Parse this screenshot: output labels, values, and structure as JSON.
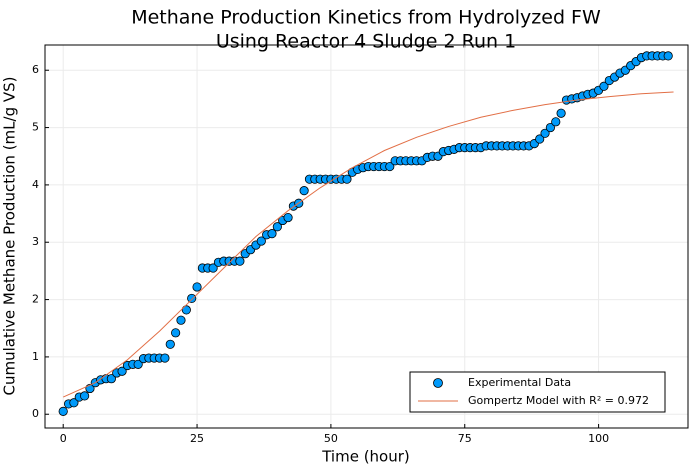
{
  "chart_data": {
    "type": "scatter",
    "title": [
      "Methane Production Kinetics from Hydrolyzed FW",
      "Using Reactor 4 Sludge 2 Run 1"
    ],
    "x_label": "Time (hour)",
    "y_label": "Cumulative Methane Production (mL/g VS)",
    "xlim": [
      -3.4,
      116.7
    ],
    "ylim": [
      -0.24,
      6.44
    ],
    "xticks": [
      0,
      25,
      50,
      75,
      100
    ],
    "yticks": [
      0,
      1,
      2,
      3,
      4,
      5,
      6
    ],
    "grid": true,
    "legend": "bottom-right",
    "series": [
      {
        "name": "Experimental Data",
        "type": "scatter",
        "color": "#009afa",
        "x": [
          0,
          1,
          2,
          3,
          4,
          5,
          6,
          7,
          8,
          9,
          10,
          11,
          12,
          13,
          14,
          15,
          16,
          17,
          18,
          19,
          20,
          21,
          22,
          23,
          24,
          25,
          26,
          27,
          28,
          29,
          30,
          31,
          32,
          33,
          34,
          35,
          36,
          37,
          38,
          39,
          40,
          41,
          42,
          43,
          44,
          45,
          46,
          47,
          48,
          49,
          50,
          51,
          52,
          53,
          54,
          55,
          56,
          57,
          58,
          59,
          60,
          61,
          62,
          63,
          64,
          65,
          66,
          67,
          68,
          69,
          70,
          71,
          72,
          73,
          74,
          75,
          76,
          77,
          78,
          79,
          80,
          81,
          82,
          83,
          84,
          85,
          86,
          87,
          88,
          89,
          90,
          91,
          92,
          93,
          94,
          95,
          96,
          97,
          98,
          99,
          100,
          101,
          102,
          103,
          104,
          105,
          106,
          107,
          108,
          109,
          110,
          111,
          112,
          113
        ],
        "values": [
          0.05,
          0.18,
          0.2,
          0.3,
          0.32,
          0.45,
          0.55,
          0.6,
          0.62,
          0.62,
          0.72,
          0.75,
          0.85,
          0.87,
          0.87,
          0.97,
          0.98,
          0.98,
          0.98,
          0.98,
          1.22,
          1.42,
          1.64,
          1.82,
          2.02,
          2.22,
          2.55,
          2.55,
          2.55,
          2.65,
          2.67,
          2.67,
          2.67,
          2.67,
          2.8,
          2.87,
          2.95,
          3.02,
          3.13,
          3.15,
          3.27,
          3.38,
          3.43,
          3.63,
          3.68,
          3.9,
          4.1,
          4.1,
          4.1,
          4.1,
          4.1,
          4.1,
          4.1,
          4.1,
          4.22,
          4.27,
          4.3,
          4.32,
          4.32,
          4.32,
          4.32,
          4.32,
          4.42,
          4.42,
          4.42,
          4.42,
          4.42,
          4.42,
          4.48,
          4.5,
          4.5,
          4.58,
          4.6,
          4.62,
          4.65,
          4.65,
          4.65,
          4.65,
          4.65,
          4.68,
          4.68,
          4.68,
          4.68,
          4.68,
          4.68,
          4.68,
          4.68,
          4.68,
          4.72,
          4.8,
          4.9,
          5.0,
          5.1,
          5.25,
          5.48,
          5.5,
          5.52,
          5.55,
          5.58,
          5.6,
          5.65,
          5.72,
          5.82,
          5.88,
          5.95,
          6.0,
          6.08,
          6.15,
          6.22,
          6.25,
          6.25,
          6.25,
          6.25,
          6.25
        ]
      },
      {
        "name": "Gompertz Model with R² = 0.972",
        "type": "line",
        "color": "#e26f46",
        "x": [
          0,
          6,
          12,
          18,
          24,
          30,
          36,
          42,
          48,
          54,
          60,
          66,
          72,
          78,
          84,
          90,
          96,
          102,
          108,
          114
        ],
        "values": [
          0.3,
          0.55,
          0.95,
          1.45,
          2.0,
          2.55,
          3.1,
          3.55,
          3.95,
          4.3,
          4.6,
          4.83,
          5.02,
          5.18,
          5.3,
          5.4,
          5.48,
          5.54,
          5.59,
          5.62
        ]
      }
    ]
  }
}
